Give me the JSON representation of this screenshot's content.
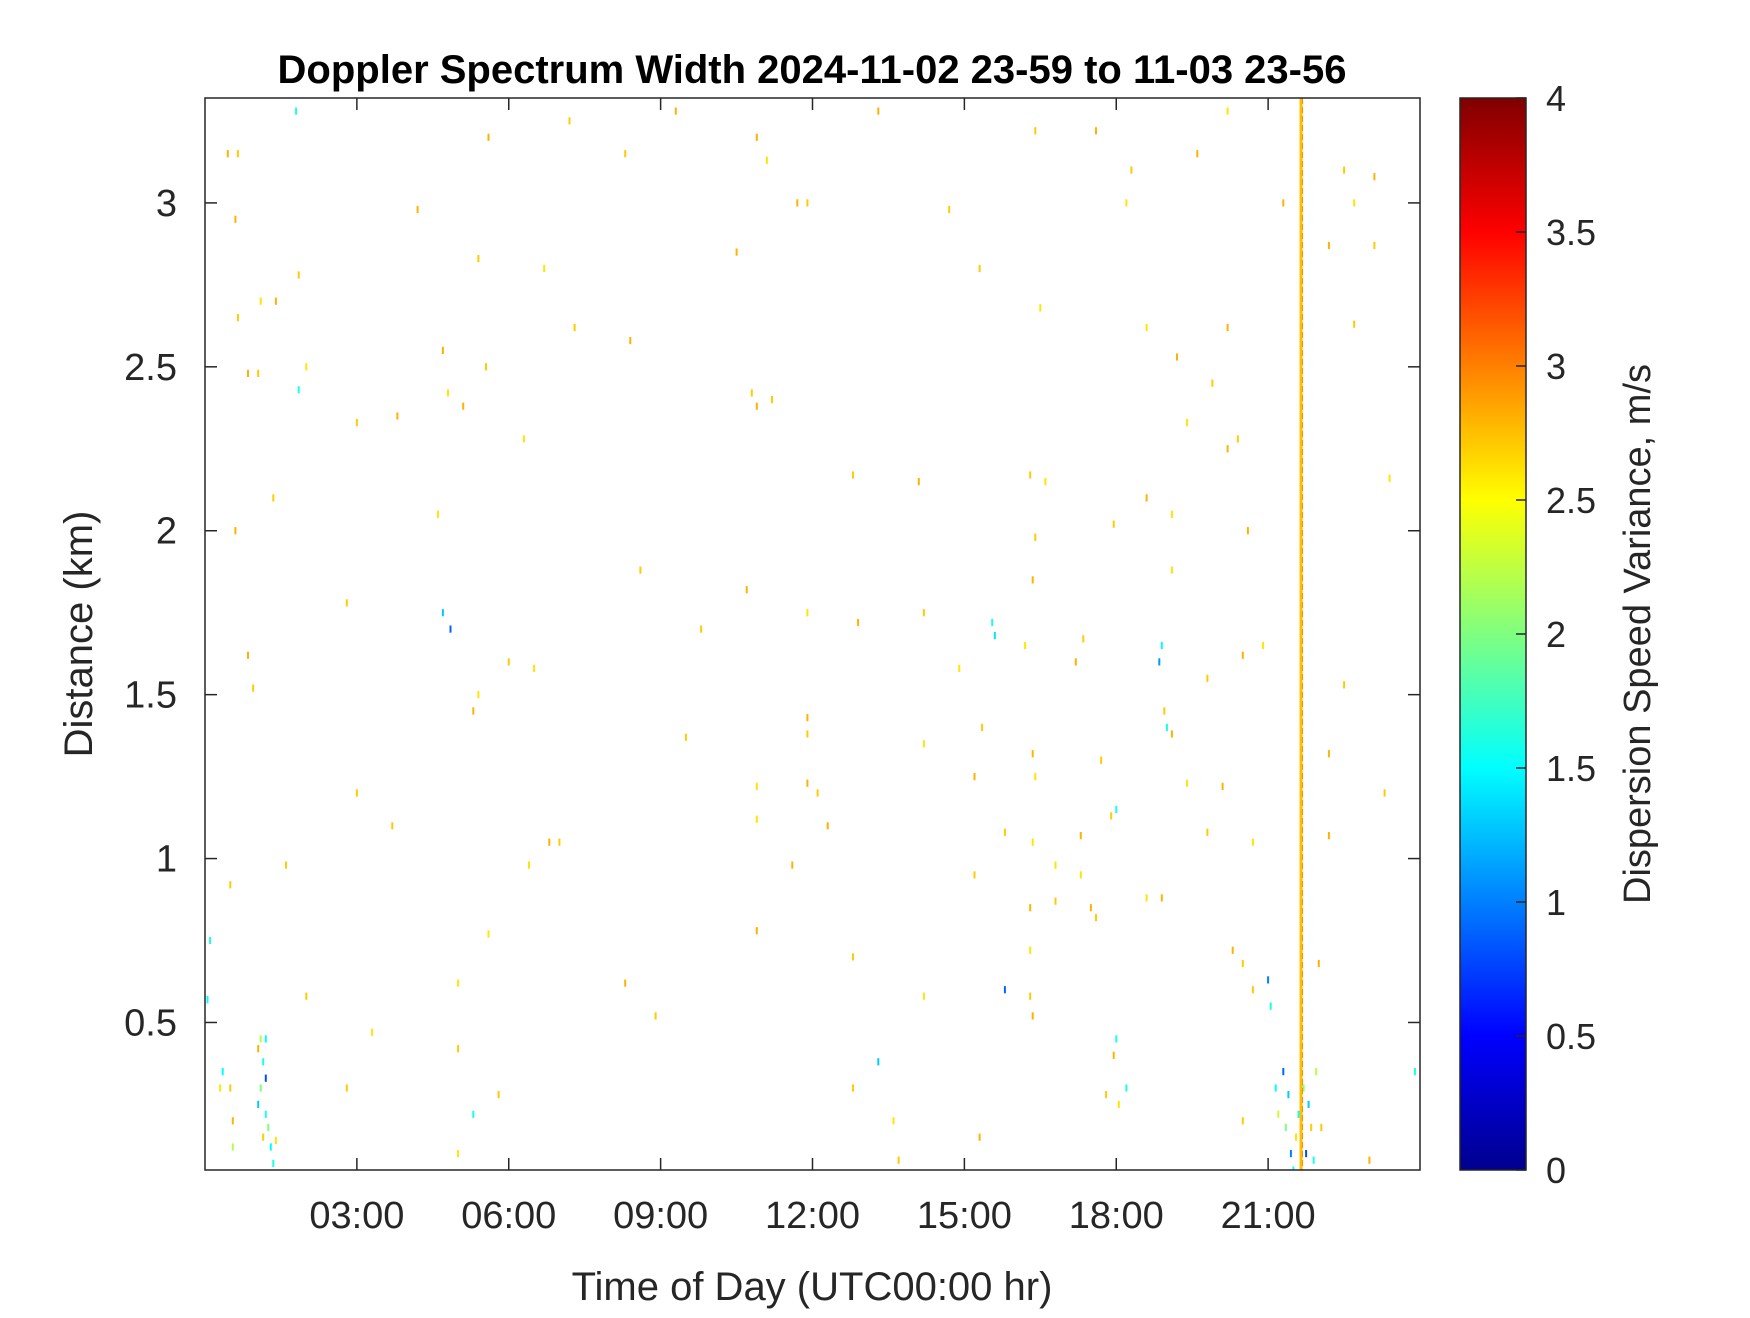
{
  "chart_data": {
    "type": "heatmap",
    "title": "Doppler Spectrum Width 2024-11-02 23-59 to 11-03 23-56",
    "xlabel": "Time of Day (UTC00:00 hr)",
    "ylabel": "Distance (km)",
    "colorbar_label": "Dispersion Speed Variance, m/s",
    "colormap": "jet",
    "xlim": [
      0,
      24
    ],
    "ylim": [
      0.05,
      3.32
    ],
    "clim": [
      0,
      4
    ],
    "grid": false,
    "x_ticks": [
      {
        "value": 3,
        "label": "03:00"
      },
      {
        "value": 6,
        "label": "06:00"
      },
      {
        "value": 9,
        "label": "09:00"
      },
      {
        "value": 12,
        "label": "12:00"
      },
      {
        "value": 15,
        "label": "15:00"
      },
      {
        "value": 18,
        "label": "18:00"
      },
      {
        "value": 21,
        "label": "21:00"
      }
    ],
    "y_ticks": [
      {
        "value": 0.5,
        "label": "0.5"
      },
      {
        "value": 1,
        "label": "1"
      },
      {
        "value": 1.5,
        "label": "1.5"
      },
      {
        "value": 2,
        "label": "2"
      },
      {
        "value": 2.5,
        "label": "2.5"
      },
      {
        "value": 3,
        "label": "3"
      }
    ],
    "colorbar_ticks": [
      {
        "value": 0,
        "label": "0"
      },
      {
        "value": 0.5,
        "label": "0.5"
      },
      {
        "value": 1,
        "label": "1"
      },
      {
        "value": 1.5,
        "label": "1.5"
      },
      {
        "value": 2,
        "label": "2"
      },
      {
        "value": 2.5,
        "label": "2.5"
      },
      {
        "value": 3,
        "label": "3"
      },
      {
        "value": 3.5,
        "label": "3.5"
      },
      {
        "value": 4,
        "label": "4"
      }
    ],
    "points": [
      [
        0.45,
        3.15,
        2.8
      ],
      [
        0.65,
        3.15,
        2.7
      ],
      [
        0.6,
        2.95,
        2.8
      ],
      [
        1.8,
        3.28,
        1.6
      ],
      [
        5.6,
        3.2,
        2.8
      ],
      [
        7.2,
        3.25,
        2.7
      ],
      [
        9.3,
        3.28,
        2.8
      ],
      [
        8.3,
        3.15,
        2.7
      ],
      [
        10.9,
        3.2,
        2.8
      ],
      [
        11.1,
        3.13,
        2.6
      ],
      [
        13.3,
        3.28,
        2.8
      ],
      [
        16.4,
        3.22,
        2.7
      ],
      [
        17.6,
        3.22,
        2.8
      ],
      [
        18.3,
        3.1,
        2.7
      ],
      [
        19.6,
        3.15,
        2.8
      ],
      [
        20.2,
        3.28,
        2.6
      ],
      [
        22.5,
        3.1,
        2.7
      ],
      [
        23.1,
        3.08,
        2.8
      ],
      [
        22.7,
        3.0,
        2.6
      ],
      [
        23.1,
        2.87,
        2.7
      ],
      [
        21.3,
        3.0,
        2.8
      ],
      [
        18.2,
        3.0,
        2.6
      ],
      [
        14.7,
        2.98,
        2.7
      ],
      [
        11.7,
        3.0,
        2.8
      ],
      [
        11.9,
        3.0,
        2.7
      ],
      [
        4.2,
        2.98,
        2.8
      ],
      [
        5.4,
        2.83,
        2.7
      ],
      [
        6.7,
        2.8,
        2.6
      ],
      [
        10.5,
        2.85,
        2.8
      ],
      [
        15.3,
        2.8,
        2.7
      ],
      [
        16.5,
        2.68,
        2.6
      ],
      [
        22.2,
        2.87,
        2.8
      ],
      [
        22.7,
        2.63,
        2.7
      ],
      [
        20.2,
        2.62,
        2.8
      ],
      [
        18.6,
        2.62,
        2.6
      ],
      [
        7.3,
        2.62,
        2.7
      ],
      [
        8.4,
        2.58,
        2.8
      ],
      [
        0.65,
        2.65,
        2.7
      ],
      [
        1.1,
        2.7,
        2.6
      ],
      [
        1.4,
        2.7,
        2.8
      ],
      [
        1.85,
        2.78,
        2.7
      ],
      [
        0.85,
        2.48,
        2.8
      ],
      [
        1.05,
        2.48,
        2.7
      ],
      [
        2.0,
        2.5,
        2.6
      ],
      [
        1.85,
        2.43,
        1.6
      ],
      [
        4.7,
        2.55,
        2.8
      ],
      [
        5.55,
        2.5,
        2.7
      ],
      [
        4.8,
        2.42,
        2.6
      ],
      [
        5.1,
        2.38,
        2.8
      ],
      [
        3.0,
        2.33,
        2.7
      ],
      [
        3.8,
        2.35,
        2.8
      ],
      [
        6.3,
        2.28,
        2.6
      ],
      [
        10.8,
        2.42,
        2.7
      ],
      [
        10.9,
        2.38,
        2.8
      ],
      [
        11.2,
        2.4,
        2.7
      ],
      [
        19.2,
        2.53,
        2.8
      ],
      [
        19.9,
        2.45,
        2.7
      ],
      [
        19.4,
        2.33,
        2.6
      ],
      [
        20.2,
        2.25,
        2.8
      ],
      [
        20.4,
        2.28,
        2.7
      ],
      [
        23.4,
        2.16,
        2.6
      ],
      [
        1.35,
        2.1,
        2.7
      ],
      [
        0.6,
        2.0,
        2.8
      ],
      [
        4.6,
        2.05,
        2.6
      ],
      [
        12.8,
        2.17,
        2.7
      ],
      [
        14.1,
        2.15,
        2.8
      ],
      [
        16.3,
        2.17,
        2.7
      ],
      [
        16.6,
        2.15,
        2.6
      ],
      [
        18.6,
        2.1,
        2.8
      ],
      [
        17.95,
        2.02,
        2.7
      ],
      [
        19.1,
        2.05,
        2.6
      ],
      [
        20.6,
        2.0,
        2.8
      ],
      [
        16.4,
        1.98,
        2.7
      ],
      [
        16.35,
        1.85,
        2.8
      ],
      [
        19.1,
        1.88,
        2.6
      ],
      [
        8.6,
        1.88,
        2.7
      ],
      [
        10.7,
        1.82,
        2.8
      ],
      [
        2.8,
        1.78,
        2.7
      ],
      [
        4.7,
        1.75,
        1.3
      ],
      [
        4.85,
        1.7,
        0.9
      ],
      [
        9.8,
        1.7,
        2.7
      ],
      [
        11.9,
        1.75,
        2.6
      ],
      [
        12.9,
        1.72,
        2.8
      ],
      [
        14.2,
        1.75,
        2.7
      ],
      [
        15.55,
        1.72,
        1.6
      ],
      [
        15.6,
        1.68,
        1.4
      ],
      [
        17.35,
        1.67,
        2.7
      ],
      [
        18.9,
        1.65,
        1.5
      ],
      [
        18.85,
        1.6,
        1.1
      ],
      [
        16.2,
        1.65,
        2.6
      ],
      [
        0.85,
        1.62,
        2.8
      ],
      [
        0.95,
        1.52,
        2.7
      ],
      [
        5.4,
        1.5,
        2.6
      ],
      [
        5.3,
        1.45,
        2.8
      ],
      [
        6.0,
        1.6,
        2.7
      ],
      [
        6.5,
        1.58,
        2.6
      ],
      [
        11.9,
        1.43,
        2.8
      ],
      [
        11.9,
        1.38,
        2.7
      ],
      [
        14.9,
        1.58,
        2.6
      ],
      [
        17.2,
        1.6,
        2.8
      ],
      [
        19.8,
        1.55,
        2.7
      ],
      [
        20.9,
        1.65,
        2.6
      ],
      [
        20.5,
        1.62,
        2.8
      ],
      [
        22.5,
        1.53,
        2.7
      ],
      [
        19.0,
        1.4,
        1.6
      ],
      [
        18.95,
        1.45,
        2.7
      ],
      [
        19.1,
        1.38,
        2.8
      ],
      [
        9.5,
        1.37,
        2.7
      ],
      [
        14.2,
        1.35,
        2.6
      ],
      [
        15.35,
        1.4,
        2.7
      ],
      [
        16.35,
        1.32,
        2.8
      ],
      [
        16.4,
        1.25,
        2.6
      ],
      [
        17.7,
        1.3,
        2.7
      ],
      [
        22.2,
        1.32,
        2.8
      ],
      [
        3.0,
        1.2,
        2.7
      ],
      [
        10.9,
        1.22,
        2.6
      ],
      [
        11.9,
        1.23,
        2.8
      ],
      [
        12.1,
        1.2,
        2.7
      ],
      [
        15.2,
        1.25,
        2.8
      ],
      [
        18.0,
        1.15,
        1.6
      ],
      [
        17.9,
        1.13,
        2.7
      ],
      [
        19.4,
        1.23,
        2.6
      ],
      [
        20.1,
        1.22,
        2.8
      ],
      [
        23.3,
        1.2,
        2.7
      ],
      [
        3.7,
        1.1,
        2.7
      ],
      [
        6.8,
        1.05,
        2.8
      ],
      [
        7.0,
        1.05,
        2.7
      ],
      [
        10.9,
        1.12,
        2.6
      ],
      [
        12.3,
        1.1,
        2.8
      ],
      [
        15.8,
        1.08,
        2.7
      ],
      [
        16.35,
        1.05,
        2.6
      ],
      [
        17.3,
        1.07,
        2.8
      ],
      [
        19.8,
        1.08,
        2.7
      ],
      [
        20.7,
        1.05,
        2.6
      ],
      [
        22.2,
        1.07,
        2.8
      ],
      [
        1.6,
        0.98,
        2.7
      ],
      [
        6.4,
        0.98,
        2.6
      ],
      [
        11.6,
        0.98,
        2.8
      ],
      [
        15.2,
        0.95,
        2.7
      ],
      [
        16.8,
        0.98,
        2.6
      ],
      [
        16.3,
        0.85,
        2.8
      ],
      [
        16.8,
        0.87,
        2.7
      ],
      [
        17.3,
        0.95,
        2.6
      ],
      [
        17.5,
        0.85,
        2.8
      ],
      [
        17.6,
        0.82,
        2.7
      ],
      [
        18.6,
        0.88,
        2.6
      ],
      [
        18.9,
        0.88,
        2.8
      ],
      [
        0.1,
        0.75,
        1.6
      ],
      [
        0.5,
        0.92,
        2.7
      ],
      [
        5.6,
        0.77,
        2.6
      ],
      [
        10.9,
        0.78,
        2.8
      ],
      [
        12.8,
        0.7,
        2.7
      ],
      [
        16.3,
        0.72,
        2.6
      ],
      [
        20.3,
        0.72,
        2.8
      ],
      [
        20.5,
        0.68,
        2.7
      ],
      [
        21.0,
        0.63,
        1.0
      ],
      [
        21.05,
        0.55,
        1.6
      ],
      [
        20.7,
        0.6,
        2.7
      ],
      [
        22.0,
        0.68,
        2.8
      ],
      [
        0.05,
        0.57,
        1.5
      ],
      [
        2.0,
        0.58,
        2.7
      ],
      [
        5.0,
        0.62,
        2.6
      ],
      [
        8.3,
        0.62,
        2.8
      ],
      [
        8.9,
        0.52,
        2.7
      ],
      [
        14.2,
        0.58,
        2.6
      ],
      [
        15.8,
        0.6,
        0.9
      ],
      [
        16.3,
        0.58,
        2.7
      ],
      [
        16.35,
        0.52,
        2.8
      ],
      [
        3.3,
        0.47,
        2.6
      ],
      [
        5.0,
        0.42,
        2.7
      ],
      [
        18.0,
        0.45,
        1.6
      ],
      [
        17.95,
        0.4,
        2.8
      ],
      [
        1.05,
        0.42,
        2.8
      ],
      [
        1.1,
        0.45,
        2.2
      ],
      [
        1.15,
        0.38,
        1.6
      ],
      [
        1.2,
        0.33,
        0.8
      ],
      [
        1.2,
        0.45,
        1.5
      ],
      [
        1.1,
        0.3,
        2.0
      ],
      [
        1.05,
        0.25,
        1.3
      ],
      [
        1.2,
        0.22,
        1.6
      ],
      [
        1.25,
        0.18,
        2.0
      ],
      [
        1.3,
        0.12,
        1.5
      ],
      [
        1.35,
        0.07,
        1.6
      ],
      [
        1.15,
        0.15,
        2.7
      ],
      [
        0.3,
        0.3,
        2.6
      ],
      [
        0.35,
        0.35,
        1.5
      ],
      [
        0.5,
        0.3,
        2.7
      ],
      [
        0.55,
        0.2,
        2.8
      ],
      [
        0.55,
        0.12,
        2.2
      ],
      [
        1.4,
        0.14,
        2.6
      ],
      [
        2.8,
        0.3,
        2.7
      ],
      [
        5.3,
        0.22,
        1.6
      ],
      [
        5.8,
        0.28,
        2.7
      ],
      [
        5.0,
        0.1,
        2.6
      ],
      [
        13.3,
        0.38,
        1.3
      ],
      [
        12.8,
        0.3,
        2.7
      ],
      [
        13.6,
        0.2,
        2.6
      ],
      [
        13.7,
        0.08,
        2.7
      ],
      [
        15.3,
        0.15,
        2.8
      ],
      [
        17.8,
        0.28,
        2.7
      ],
      [
        18.05,
        0.25,
        2.6
      ],
      [
        18.2,
        0.3,
        1.6
      ],
      [
        20.5,
        0.2,
        2.7
      ],
      [
        21.2,
        0.22,
        2.3
      ],
      [
        21.15,
        0.3,
        1.5
      ],
      [
        21.3,
        0.35,
        0.9
      ],
      [
        21.4,
        0.28,
        1.3
      ],
      [
        21.35,
        0.18,
        2.0
      ],
      [
        21.45,
        0.1,
        1.0
      ],
      [
        21.5,
        0.05,
        1.6
      ],
      [
        21.55,
        0.15,
        2.6
      ],
      [
        21.6,
        0.22,
        1.6
      ],
      [
        21.7,
        0.3,
        2.0
      ],
      [
        21.8,
        0.25,
        1.3
      ],
      [
        21.85,
        0.18,
        2.7
      ],
      [
        21.75,
        0.1,
        0.8
      ],
      [
        21.9,
        0.08,
        1.6
      ],
      [
        21.95,
        0.35,
        2.2
      ],
      [
        22.05,
        0.18,
        2.7
      ],
      [
        23.0,
        0.08,
        2.8
      ],
      [
        23.9,
        0.35,
        1.6
      ]
    ],
    "streak": {
      "x": 21.65,
      "value": 2.75,
      "y_range": [
        0.05,
        3.32
      ]
    }
  }
}
